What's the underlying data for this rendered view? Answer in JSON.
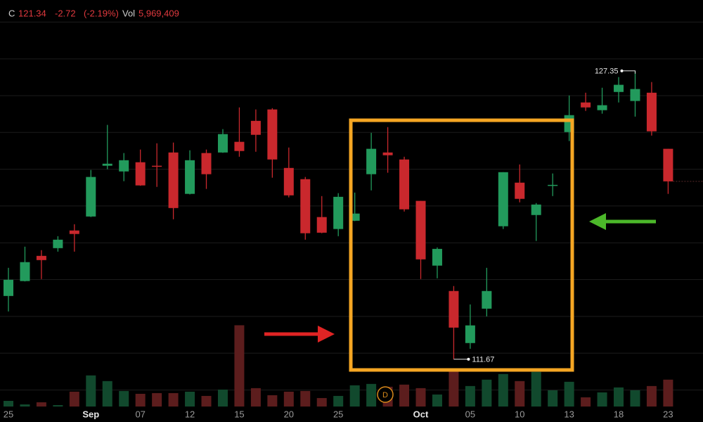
{
  "header": {
    "close_label": "C",
    "change": "-2.72",
    "change_pct": "(-2.19%)",
    "vol_label": "Vol",
    "volume": "5,969,409"
  },
  "badge": "D",
  "chart_data": {
    "type": "candlestick",
    "categories": [
      "25",
      null,
      null,
      null,
      null,
      "Sep",
      null,
      null,
      "07",
      null,
      null,
      "12",
      null,
      null,
      "15",
      null,
      null,
      "20",
      null,
      null,
      "25",
      null,
      null,
      null,
      null,
      "Oct",
      null,
      null,
      "05",
      null,
      null,
      "10",
      null,
      null,
      "13",
      null,
      null,
      "18",
      null,
      null,
      "23"
    ],
    "open": [
      115.11,
      115.92,
      117.29,
      117.71,
      118.67,
      119.43,
      122.19,
      121.88,
      122.38,
      122.19,
      122.91,
      120.66,
      122.88,
      122.91,
      123.49,
      124.63,
      125.25,
      122.07,
      121.46,
      119.4,
      118.75,
      119.2,
      121.73,
      122.91,
      122.53,
      120.28,
      116.76,
      115.38,
      112.55,
      114.42,
      118.9,
      121.27,
      119.51,
      121.12,
      124.02,
      125.63,
      125.21,
      126.2,
      125.71,
      126.16,
      123.11
    ],
    "high": [
      116.64,
      117.79,
      117.6,
      118.36,
      119.01,
      121.96,
      124.41,
      122.88,
      123.07,
      123.41,
      123.45,
      123.03,
      123.07,
      124.18,
      125.36,
      125.25,
      125.32,
      123.18,
      121.58,
      120.54,
      120.7,
      120.73,
      123.98,
      124.29,
      122.68,
      120.28,
      117.75,
      115.65,
      114.65,
      116.64,
      121.84,
      122.26,
      120.16,
      121.77,
      126.01,
      126.16,
      126.43,
      127.01,
      127.35,
      126.74,
      123.11
    ],
    "low": [
      114.27,
      115.9,
      116.03,
      117.52,
      117.52,
      119.4,
      122.0,
      121.35,
      121.1,
      121.04,
      119.28,
      120.63,
      120.93,
      122.89,
      122.68,
      122.95,
      121.54,
      120.47,
      118.17,
      118.52,
      118.36,
      119.18,
      120.85,
      121.81,
      119.7,
      116.03,
      116.07,
      111.67,
      112.24,
      114.0,
      118.75,
      120.2,
      118.1,
      120.54,
      123.53,
      125.17,
      125.02,
      125.63,
      124.86,
      123.83,
      120.66
    ],
    "close": [
      115.99,
      116.95,
      117.06,
      118.17,
      118.48,
      121.58,
      122.3,
      122.49,
      121.12,
      122.15,
      119.89,
      122.49,
      121.73,
      123.91,
      122.99,
      123.87,
      122.53,
      120.58,
      118.52,
      118.55,
      120.5,
      119.59,
      123.11,
      122.76,
      119.82,
      117.1,
      117.67,
      113.39,
      113.51,
      115.38,
      121.84,
      120.39,
      120.08,
      121.15,
      124.94,
      125.36,
      125.48,
      126.59,
      126.36,
      124.06,
      121.34
    ],
    "volume": [
      1256000,
      471000,
      942000,
      314000,
      3297000,
      6908000,
      5652000,
      3454000,
      2826000,
      2983000,
      2983000,
      3297000,
      2355000,
      3768000,
      18055000,
      4082000,
      2512000,
      3297000,
      3454000,
      1884000,
      2355000,
      4710000,
      5024000,
      4396000,
      4867000,
      4082000,
      2669000,
      8321000,
      4553000,
      5969000,
      7222000,
      5652000,
      7693000,
      3611000,
      5495000,
      2041000,
      3140000,
      4239000,
      3611000,
      4553000,
      5969409
    ],
    "ylim": [
      109.1,
      131.2
    ],
    "yticks": [
      110,
      112,
      114,
      116,
      118,
      120,
      122,
      124,
      126,
      128,
      130
    ],
    "vlim": [
      0,
      20000000
    ],
    "grid": true,
    "up_color": "#229a5c",
    "down_color": "#c9282d",
    "up_volume_color": "#11492d",
    "down_volume_color": "#5c1d1d"
  }
}
